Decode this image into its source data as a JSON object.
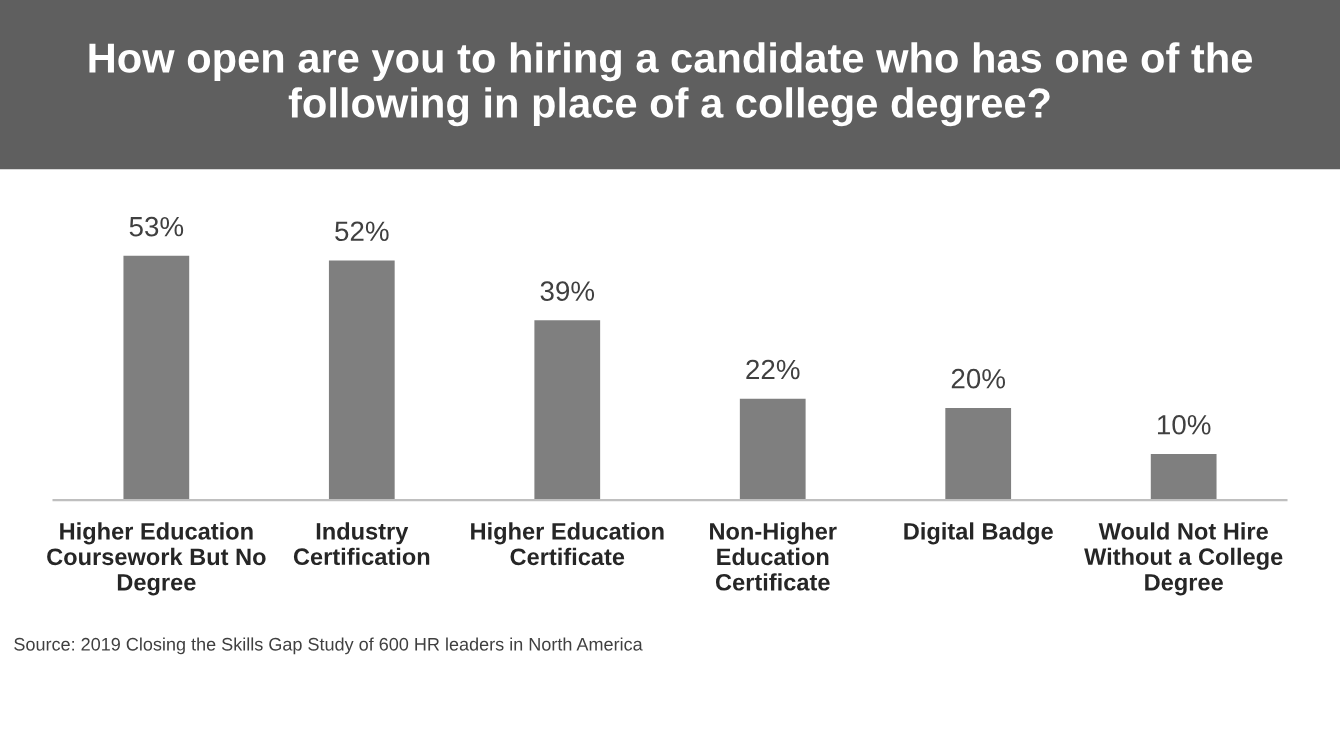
{
  "chart_data": {
    "type": "bar",
    "title": "How open are you to hiring a candidate who has one of the following in place of a college degree?",
    "categories": [
      "Higher Education Coursework But No Degree",
      "Industry Certification",
      "Higher Education Certificate",
      "Non-Higher Education Certificate",
      "Digital Badge",
      "Would Not Hire Without a College Degree"
    ],
    "values": [
      53,
      52,
      39,
      22,
      20,
      10
    ],
    "value_labels": [
      "53%",
      "52%",
      "39%",
      "22%",
      "20%",
      "10%"
    ],
    "color": "#7f7f7f",
    "tick_labels": "x",
    "grid": false,
    "legend": false,
    "annotations": [
      "Source: 2019 Closing the Skills Gap Study of 600 HR leaders in North America"
    ]
  }
}
